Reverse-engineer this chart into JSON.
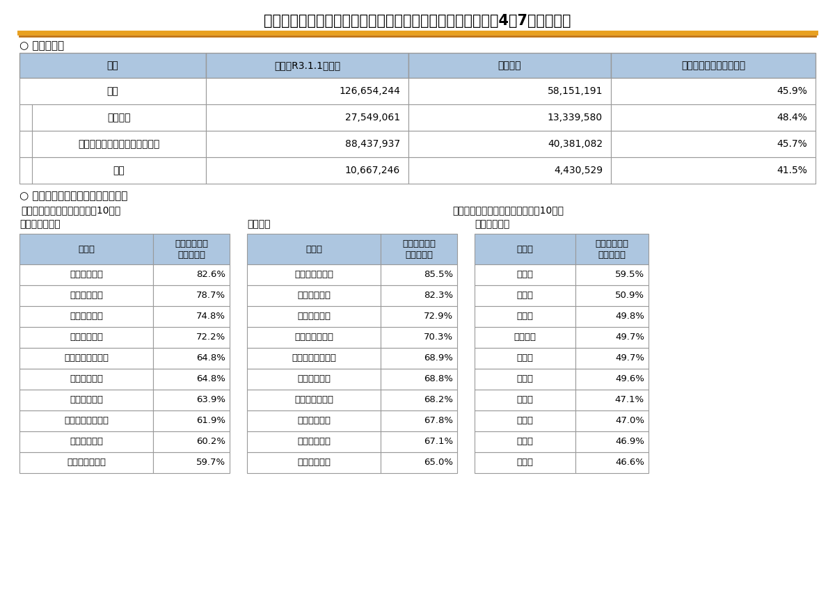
{
  "title": "マイナンバーカードの市区町村別交付枚数等について（令和4年7月末時点）",
  "section1_label": "○ 団体区分別",
  "section2_label": "○ マイナンバーカード交付先進地域",
  "top_table_headers": [
    "区分",
    "人口（R3.1.1時点）",
    "交付枚数",
    "人口に対する交付枚数率"
  ],
  "top_table_rows": [
    [
      "全国",
      "126,654,244",
      "58,151,191",
      "45.9%"
    ],
    [
      "指定都市",
      "27,549,061",
      "13,339,580",
      "48.4%"
    ],
    [
      "特別区・市（指定都市を除く）",
      "88,437,937",
      "40,381,082",
      "45.7%"
    ],
    [
      "町村",
      "10,667,246",
      "4,430,529",
      "41.5%"
    ]
  ],
  "sub_label1": "（１）区分別交付枚数率上位10団体",
  "sub_label2": "（２）都道府県別交付枚数率上位10団体",
  "table_city_label": "【特別区・市】",
  "table_town_label": "【町村】",
  "table_pref_label": "【都道府県】",
  "table_col1": "団体名",
  "table_col2": "人口に対する\n交付枚数率",
  "city_data": [
    [
      "宮崎県都城市",
      "82.6%"
    ],
    [
      "兵庫県養父市",
      "78.7%"
    ],
    [
      "石川県加賀市",
      "74.8%"
    ],
    [
      "高知県宿毛市",
      "72.2%"
    ],
    [
      "和歌山県紀の川市",
      "64.8%"
    ],
    [
      "石川県珠洲市",
      "64.8%"
    ],
    [
      "愛媛県大洲市",
      "63.9%"
    ],
    [
      "鹿児島県西之表市",
      "61.9%"
    ],
    [
      "宮崎県宮崎市",
      "60.2%"
    ],
    [
      "高知県四万十市",
      "59.7%"
    ]
  ],
  "town_data": [
    [
      "新潟県粟島浦村",
      "85.5%"
    ],
    [
      "大分県姫島村",
      "82.3%"
    ],
    [
      "福井県池田町",
      "72.9%"
    ],
    [
      "静岡県西伊豆町",
      "70.3%"
    ],
    [
      "鹿児島県中種子町",
      "68.9%"
    ],
    [
      "長野県南牧村",
      "68.8%"
    ],
    [
      "長崎県小値賀町",
      "68.2%"
    ],
    [
      "兵庫県香美町",
      "67.8%"
    ],
    [
      "熊本県苓北町",
      "67.1%"
    ],
    [
      "福島県磐梯町",
      "65.0%"
    ]
  ],
  "pref_data": [
    [
      "宮崎県",
      "59.5%"
    ],
    [
      "兵庫県",
      "50.9%"
    ],
    [
      "奈良県",
      "49.8%"
    ],
    [
      "神奈川県",
      "49.7%"
    ],
    [
      "東京都",
      "49.7%"
    ],
    [
      "滋賀県",
      "49.6%"
    ],
    [
      "山口県",
      "47.1%"
    ],
    [
      "千葉県",
      "47.0%"
    ],
    [
      "大阪府",
      "46.9%"
    ],
    [
      "広島県",
      "46.6%"
    ]
  ],
  "header_bg": "#adc6e0",
  "row_bg": "#ffffff",
  "border_color": "#999999",
  "orange_color": "#e8a020",
  "orange_dark": "#c07010",
  "bg_color": "#ffffff",
  "title_fontsize": 15,
  "section_fontsize": 11,
  "body_fontsize": 10,
  "small_fontsize": 9.5
}
